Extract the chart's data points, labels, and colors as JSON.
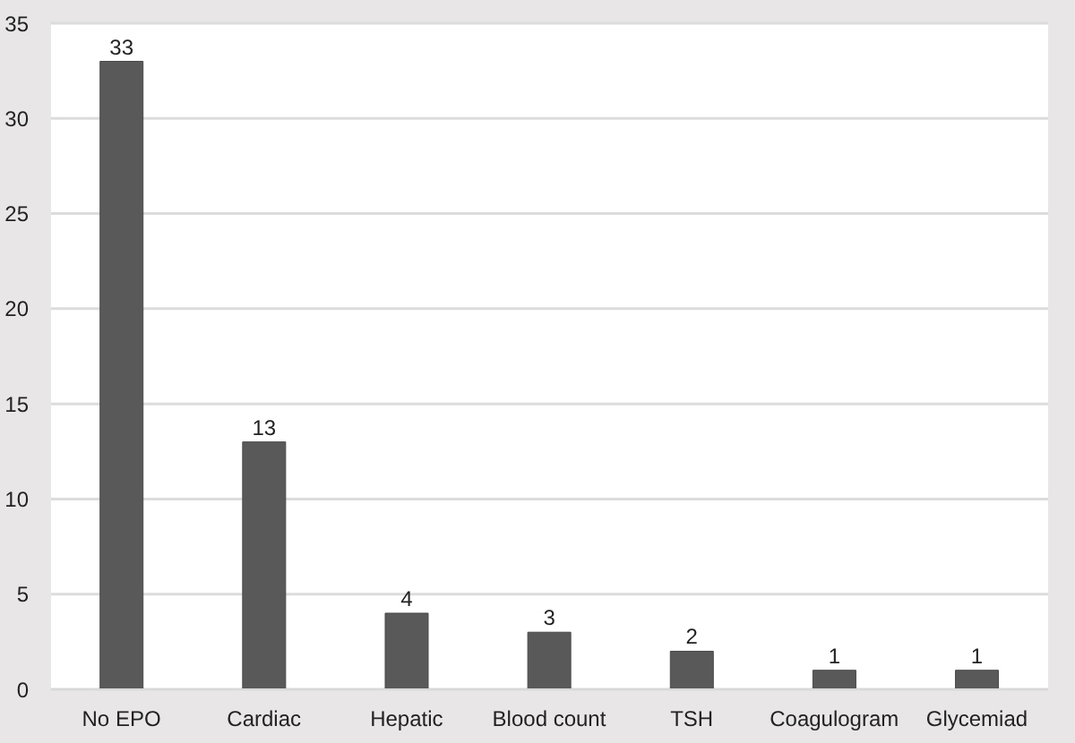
{
  "chart_data": {
    "type": "bar",
    "categories": [
      "No EPO",
      "Cardiac",
      "Hepatic",
      "Blood count",
      "TSH",
      "Coagulogram",
      "Glycemiad"
    ],
    "values": [
      33,
      13,
      4,
      3,
      2,
      1,
      1
    ],
    "color": "#595959",
    "ylim": [
      0,
      35
    ],
    "yticks": [
      0,
      5,
      10,
      15,
      20,
      25,
      30,
      35
    ],
    "grid": "y",
    "data_labels": true
  }
}
